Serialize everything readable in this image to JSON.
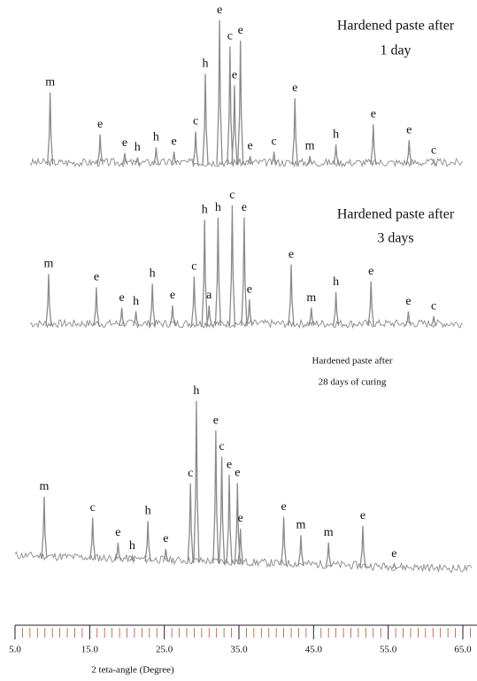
{
  "chart_data": {
    "type": "xrd",
    "xlabel": "2 teta-angle (Degree)",
    "xlim": [
      5,
      67
    ],
    "xticks": [
      {
        "value": 5,
        "label": "5.0"
      },
      {
        "value": 15,
        "label": "15.0"
      },
      {
        "value": 25,
        "label": "25.0"
      },
      {
        "value": 35,
        "label": "35.0"
      },
      {
        "value": 45,
        "label": "45.0"
      },
      {
        "value": 55,
        "label": "55.0"
      },
      {
        "value": 65,
        "label": "65.0"
      }
    ],
    "xminorticks": [
      6,
      7,
      8,
      9,
      10,
      11,
      12,
      13,
      14,
      16,
      17,
      18,
      19,
      20,
      21,
      22,
      23,
      24,
      26,
      27,
      28,
      29,
      30,
      31,
      32,
      33,
      34,
      36,
      37,
      38,
      39,
      40,
      41,
      42,
      43,
      44,
      46,
      47,
      48,
      49,
      50,
      51,
      52,
      53,
      54,
      56,
      57,
      58,
      59,
      60,
      61,
      62,
      63,
      64,
      66,
      67
    ],
    "color": "#8a8a8a",
    "series": [
      {
        "title_lines": [
          "Hardened paste after",
          "1 day"
        ],
        "peaks": {
          "labels": [
            "m",
            "e",
            "e",
            "h",
            "h",
            "e",
            "c",
            "h",
            "e",
            "c",
            "e",
            "e",
            "e",
            "c",
            "m",
            "h",
            "e",
            "e",
            "e",
            "c"
          ],
          "x": [
            9.7,
            16.4,
            19.7,
            21.4,
            23.9,
            26.3,
            29.2,
            30.5,
            32.4,
            33.8,
            34.4,
            35.2,
            36.5,
            39.7,
            44.5,
            48.0,
            42.5,
            53.0,
            57.8,
            61.1
          ],
          "heights": [
            50,
            21,
            8,
            5,
            12,
            9,
            23,
            63,
            100,
            82,
            55,
            86,
            6,
            9,
            6,
            14,
            46,
            28,
            17,
            3
          ]
        }
      },
      {
        "title_lines": [
          "Hardened paste after",
          "3 days"
        ],
        "peaks": {
          "labels": [
            "m",
            "e",
            "e",
            "h",
            "h",
            "e",
            "c",
            "h",
            "a",
            "h",
            "c",
            "e",
            "e",
            "e",
            "m",
            "h",
            "e",
            "e",
            "c"
          ],
          "x": [
            9.5,
            15.9,
            19.3,
            21.2,
            23.4,
            26.1,
            29.0,
            30.4,
            31.0,
            32.2,
            34.1,
            35.7,
            36.4,
            42.0,
            44.7,
            48.0,
            52.7,
            57.7,
            61.1
          ],
          "heights": [
            43,
            32,
            15,
            12,
            35,
            17,
            41,
            88,
            17,
            90,
            100,
            90,
            22,
            51,
            15,
            28,
            37,
            12,
            8
          ]
        }
      },
      {
        "title_lines": [
          "Hardened paste after",
          "28 days of curing"
        ],
        "peaks": {
          "labels": [
            "m",
            "c",
            "e",
            "h",
            "h",
            "e",
            "c",
            "h",
            "e",
            "c",
            "e",
            "e",
            "e",
            "e",
            "m",
            "m",
            "e",
            "e"
          ],
          "x": [
            8.9,
            15.4,
            18.8,
            20.7,
            22.8,
            25.2,
            28.5,
            29.3,
            31.9,
            32.7,
            33.7,
            34.8,
            35.2,
            41.0,
            43.3,
            47.0,
            51.6,
            55.8
          ],
          "heights": [
            38,
            26,
            11,
            3,
            25,
            8,
            49,
            100,
            82,
            66,
            55,
            50,
            22,
            30,
            19,
            15,
            26,
            3
          ]
        }
      }
    ]
  }
}
